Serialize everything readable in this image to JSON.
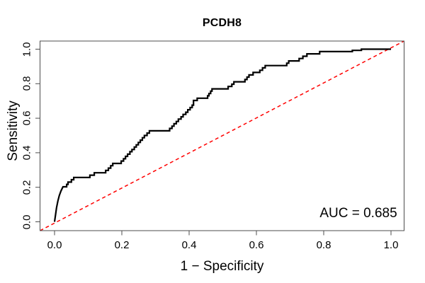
{
  "figure": {
    "title": "PCDH8",
    "auc_label": "AUC = 0.685"
  },
  "chart_data": {
    "type": "line",
    "subtype": "roc-curve",
    "title": "PCDH8",
    "xlabel": "1 − Specificity",
    "ylabel": "Sensitivity",
    "xlim": [
      0,
      1
    ],
    "ylim": [
      0,
      1
    ],
    "grid": false,
    "legend": "none",
    "x_ticks": {
      "values": [
        0,
        0.2,
        0.4,
        0.6,
        0.8,
        1.0
      ],
      "labels": [
        "0.0",
        "0.2",
        "0.4",
        "0.6",
        "0.8",
        "1.0"
      ]
    },
    "y_ticks": {
      "values": [
        0,
        0.2,
        0.4,
        0.6,
        0.8,
        1.0
      ],
      "labels": [
        "0.0",
        "0.2",
        "0.4",
        "0.6",
        "0.8",
        "1.0"
      ]
    },
    "annotation": {
      "text": "AUC = 0.685",
      "auc": 0.685
    },
    "frame_color": "#4d4d4d",
    "roc_curve": {
      "name": "ROC curve",
      "color": "#000000",
      "line_width": 2.2,
      "points": [
        [
          0.0,
          0.0
        ],
        [
          0.003,
          0.04
        ],
        [
          0.006,
          0.081
        ],
        [
          0.01,
          0.122
        ],
        [
          0.014,
          0.152
        ],
        [
          0.019,
          0.178
        ],
        [
          0.025,
          0.203
        ],
        [
          0.036,
          0.203
        ],
        [
          0.036,
          0.217
        ],
        [
          0.04,
          0.217
        ],
        [
          0.04,
          0.23
        ],
        [
          0.05,
          0.23
        ],
        [
          0.05,
          0.244
        ],
        [
          0.057,
          0.244
        ],
        [
          0.057,
          0.257
        ],
        [
          0.105,
          0.257
        ],
        [
          0.105,
          0.27
        ],
        [
          0.118,
          0.27
        ],
        [
          0.118,
          0.284
        ],
        [
          0.152,
          0.284
        ],
        [
          0.152,
          0.298
        ],
        [
          0.16,
          0.298
        ],
        [
          0.16,
          0.311
        ],
        [
          0.167,
          0.311
        ],
        [
          0.167,
          0.325
        ],
        [
          0.173,
          0.325
        ],
        [
          0.173,
          0.338
        ],
        [
          0.198,
          0.338
        ],
        [
          0.198,
          0.352
        ],
        [
          0.205,
          0.352
        ],
        [
          0.205,
          0.365
        ],
        [
          0.211,
          0.365
        ],
        [
          0.211,
          0.379
        ],
        [
          0.217,
          0.379
        ],
        [
          0.217,
          0.392
        ],
        [
          0.224,
          0.392
        ],
        [
          0.224,
          0.406
        ],
        [
          0.23,
          0.406
        ],
        [
          0.23,
          0.419
        ],
        [
          0.237,
          0.419
        ],
        [
          0.237,
          0.433
        ],
        [
          0.243,
          0.433
        ],
        [
          0.243,
          0.446
        ],
        [
          0.249,
          0.446
        ],
        [
          0.249,
          0.46
        ],
        [
          0.255,
          0.46
        ],
        [
          0.255,
          0.473
        ],
        [
          0.261,
          0.473
        ],
        [
          0.261,
          0.487
        ],
        [
          0.267,
          0.487
        ],
        [
          0.267,
          0.5
        ],
        [
          0.275,
          0.5
        ],
        [
          0.275,
          0.514
        ],
        [
          0.282,
          0.514
        ],
        [
          0.282,
          0.527
        ],
        [
          0.342,
          0.527
        ],
        [
          0.342,
          0.541
        ],
        [
          0.349,
          0.541
        ],
        [
          0.349,
          0.554
        ],
        [
          0.355,
          0.554
        ],
        [
          0.355,
          0.568
        ],
        [
          0.362,
          0.568
        ],
        [
          0.362,
          0.581
        ],
        [
          0.368,
          0.581
        ],
        [
          0.368,
          0.595
        ],
        [
          0.376,
          0.595
        ],
        [
          0.376,
          0.608
        ],
        [
          0.382,
          0.608
        ],
        [
          0.382,
          0.622
        ],
        [
          0.39,
          0.622
        ],
        [
          0.39,
          0.635
        ],
        [
          0.396,
          0.635
        ],
        [
          0.396,
          0.649
        ],
        [
          0.403,
          0.649
        ],
        [
          0.403,
          0.662
        ],
        [
          0.409,
          0.662
        ],
        [
          0.409,
          0.676
        ],
        [
          0.413,
          0.676
        ],
        [
          0.413,
          0.703
        ],
        [
          0.424,
          0.703
        ],
        [
          0.424,
          0.716
        ],
        [
          0.455,
          0.716
        ],
        [
          0.455,
          0.73
        ],
        [
          0.459,
          0.73
        ],
        [
          0.459,
          0.743
        ],
        [
          0.464,
          0.743
        ],
        [
          0.464,
          0.757
        ],
        [
          0.468,
          0.757
        ],
        [
          0.468,
          0.77
        ],
        [
          0.516,
          0.77
        ],
        [
          0.516,
          0.784
        ],
        [
          0.527,
          0.784
        ],
        [
          0.527,
          0.797
        ],
        [
          0.533,
          0.797
        ],
        [
          0.533,
          0.811
        ],
        [
          0.566,
          0.811
        ],
        [
          0.566,
          0.824
        ],
        [
          0.572,
          0.824
        ],
        [
          0.572,
          0.838
        ],
        [
          0.578,
          0.838
        ],
        [
          0.578,
          0.851
        ],
        [
          0.59,
          0.851
        ],
        [
          0.59,
          0.865
        ],
        [
          0.61,
          0.865
        ],
        [
          0.61,
          0.878
        ],
        [
          0.618,
          0.878
        ],
        [
          0.618,
          0.892
        ],
        [
          0.626,
          0.892
        ],
        [
          0.626,
          0.905
        ],
        [
          0.69,
          0.905
        ],
        [
          0.69,
          0.919
        ],
        [
          0.696,
          0.919
        ],
        [
          0.696,
          0.932
        ],
        [
          0.727,
          0.932
        ],
        [
          0.727,
          0.946
        ],
        [
          0.738,
          0.946
        ],
        [
          0.738,
          0.959
        ],
        [
          0.75,
          0.959
        ],
        [
          0.75,
          0.973
        ],
        [
          0.788,
          0.973
        ],
        [
          0.788,
          0.986
        ],
        [
          0.885,
          0.986
        ],
        [
          0.885,
          0.993
        ],
        [
          0.912,
          0.993
        ],
        [
          0.912,
          1.0
        ],
        [
          1.0,
          1.0
        ]
      ]
    },
    "reference_line": {
      "name": "chance diagonal",
      "color": "#FF0000",
      "style": "dashed",
      "from": [
        0,
        0
      ],
      "to": [
        1,
        1
      ]
    }
  }
}
